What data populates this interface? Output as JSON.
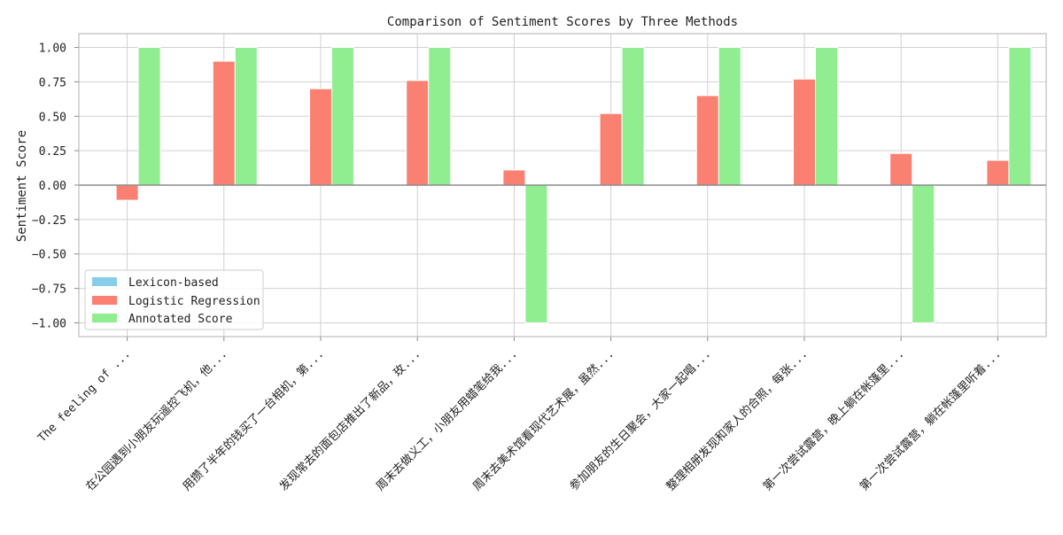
{
  "chart_data": {
    "type": "bar",
    "title": "Comparison of Sentiment Scores by Three Methods",
    "xlabel": "",
    "ylabel": "Sentiment Score",
    "ylim": [
      -1.1,
      1.1
    ],
    "yticks": [
      -1.0,
      -0.75,
      -0.5,
      -0.25,
      0.0,
      0.25,
      0.5,
      0.75,
      1.0
    ],
    "ytick_labels": [
      "−1.00",
      "−0.75",
      "−0.50",
      "−0.25",
      "0.00",
      "0.25",
      "0.50",
      "0.75",
      "1.00"
    ],
    "grid": true,
    "legend_position": "lower-left",
    "categories": [
      "The feeling of ...",
      "在公园遇到小朋友玩遥控飞机，他...",
      "用攒了半年的钱买了一台相机，第...",
      "发现常去的面包店推出了新品，玫...",
      "周末去做义工，小朋友用蜡笔给我...",
      "周末去美术馆看现代艺术展，虽然...",
      "参加朋友的生日聚会，大家一起唱...",
      "整理相册发现和家人的合照，每张...",
      "第一次尝试露营，晚上躺在帐篷里...",
      "第一次尝试露营，躺在帐篷里听着..."
    ],
    "series": [
      {
        "name": "Lexicon-based",
        "color": "#87ceeb",
        "values": [
          0,
          0,
          0,
          0,
          0,
          0,
          0,
          0,
          0,
          0
        ]
      },
      {
        "name": "Logistic Regression",
        "color": "#fa8072",
        "values": [
          -0.11,
          0.9,
          0.7,
          0.76,
          0.11,
          0.52,
          0.65,
          0.77,
          0.23,
          0.18
        ]
      },
      {
        "name": "Annotated Score",
        "color": "#90ee90",
        "values": [
          1,
          1,
          1,
          1,
          -1,
          1,
          1,
          1,
          -1,
          1
        ]
      }
    ]
  }
}
